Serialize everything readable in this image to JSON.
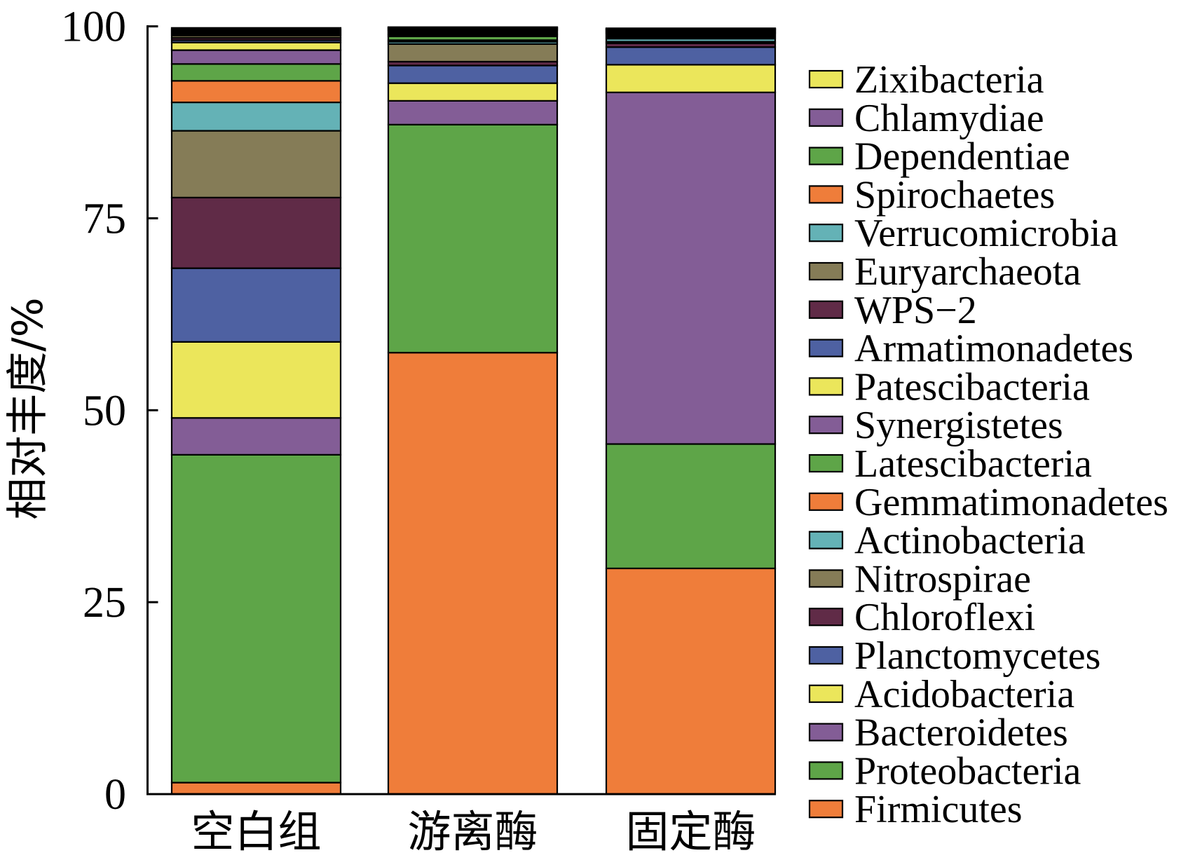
{
  "chart_data": {
    "type": "bar",
    "stacked": true,
    "title": "",
    "xlabel": "",
    "ylabel": "相对丰度/%",
    "categories": [
      "空白组",
      "游离酶",
      "固定酶"
    ],
    "ylim": [
      0,
      100
    ],
    "yticks": [
      0,
      25,
      50,
      75,
      100
    ],
    "grid": false,
    "legend": "right",
    "series": [
      {
        "name": "Firmicutes",
        "color": "#EF7D3A",
        "values": [
          1.5,
          57.5,
          29.4
        ]
      },
      {
        "name": "Proteobacteria",
        "color": "#5EA548",
        "values": [
          42.7,
          29.7,
          16.2
        ]
      },
      {
        "name": "Bacteroidetes",
        "color": "#835D96",
        "values": [
          4.8,
          3.1,
          45.8
        ]
      },
      {
        "name": "Acidobacteria",
        "color": "#EBE65B",
        "values": [
          9.9,
          2.3,
          3.6
        ]
      },
      {
        "name": "Planctomycetes",
        "color": "#4E61A2",
        "values": [
          9.6,
          2.3,
          2.3
        ]
      },
      {
        "name": "Chloroflexi",
        "color": "#602B47",
        "values": [
          9.2,
          0.5,
          0.5
        ]
      },
      {
        "name": "Nitrospirae",
        "color": "#857C57",
        "values": [
          8.7,
          2.3,
          0.2
        ]
      },
      {
        "name": "Actinobacteria",
        "color": "#64B2B6",
        "values": [
          3.7,
          0.3,
          0.4
        ]
      },
      {
        "name": "Gemmatimonadetes",
        "color": "#EF7D3A",
        "values": [
          2.8,
          0.2,
          0.2
        ]
      },
      {
        "name": "Latescibacteria",
        "color": "#5EA548",
        "values": [
          2.2,
          0.5,
          0.2
        ]
      },
      {
        "name": "Synergistetes",
        "color": "#835D96",
        "values": [
          1.8,
          0.2,
          0.2
        ]
      },
      {
        "name": "Patescibacteria",
        "color": "#EBE65B",
        "values": [
          1.0,
          0.1,
          0.1
        ]
      },
      {
        "name": "Armatimonadetes",
        "color": "#4E61A2",
        "values": [
          0.3,
          0.2,
          0.1
        ]
      },
      {
        "name": "WPS−2",
        "color": "#602B47",
        "values": [
          0.3,
          0.2,
          0.1
        ]
      },
      {
        "name": "Euryarchaeota",
        "color": "#857C57",
        "values": [
          0.3,
          0.1,
          0.1
        ]
      },
      {
        "name": "Verrucomicrobia",
        "color": "#64B2B6",
        "values": [
          0.2,
          0.1,
          0.1
        ]
      },
      {
        "name": "Spirochaetes",
        "color": "#EF7D3A",
        "values": [
          0.2,
          0.1,
          0.1
        ]
      },
      {
        "name": "Dependentiae",
        "color": "#5EA548",
        "values": [
          0.2,
          0.1,
          0.05
        ]
      },
      {
        "name": "Chlamydiae",
        "color": "#835D96",
        "values": [
          0.2,
          0.05,
          0.05
        ]
      },
      {
        "name": "Zixibacteria",
        "color": "#EBE65B",
        "values": [
          0.2,
          0.05,
          0.05
        ]
      }
    ]
  }
}
